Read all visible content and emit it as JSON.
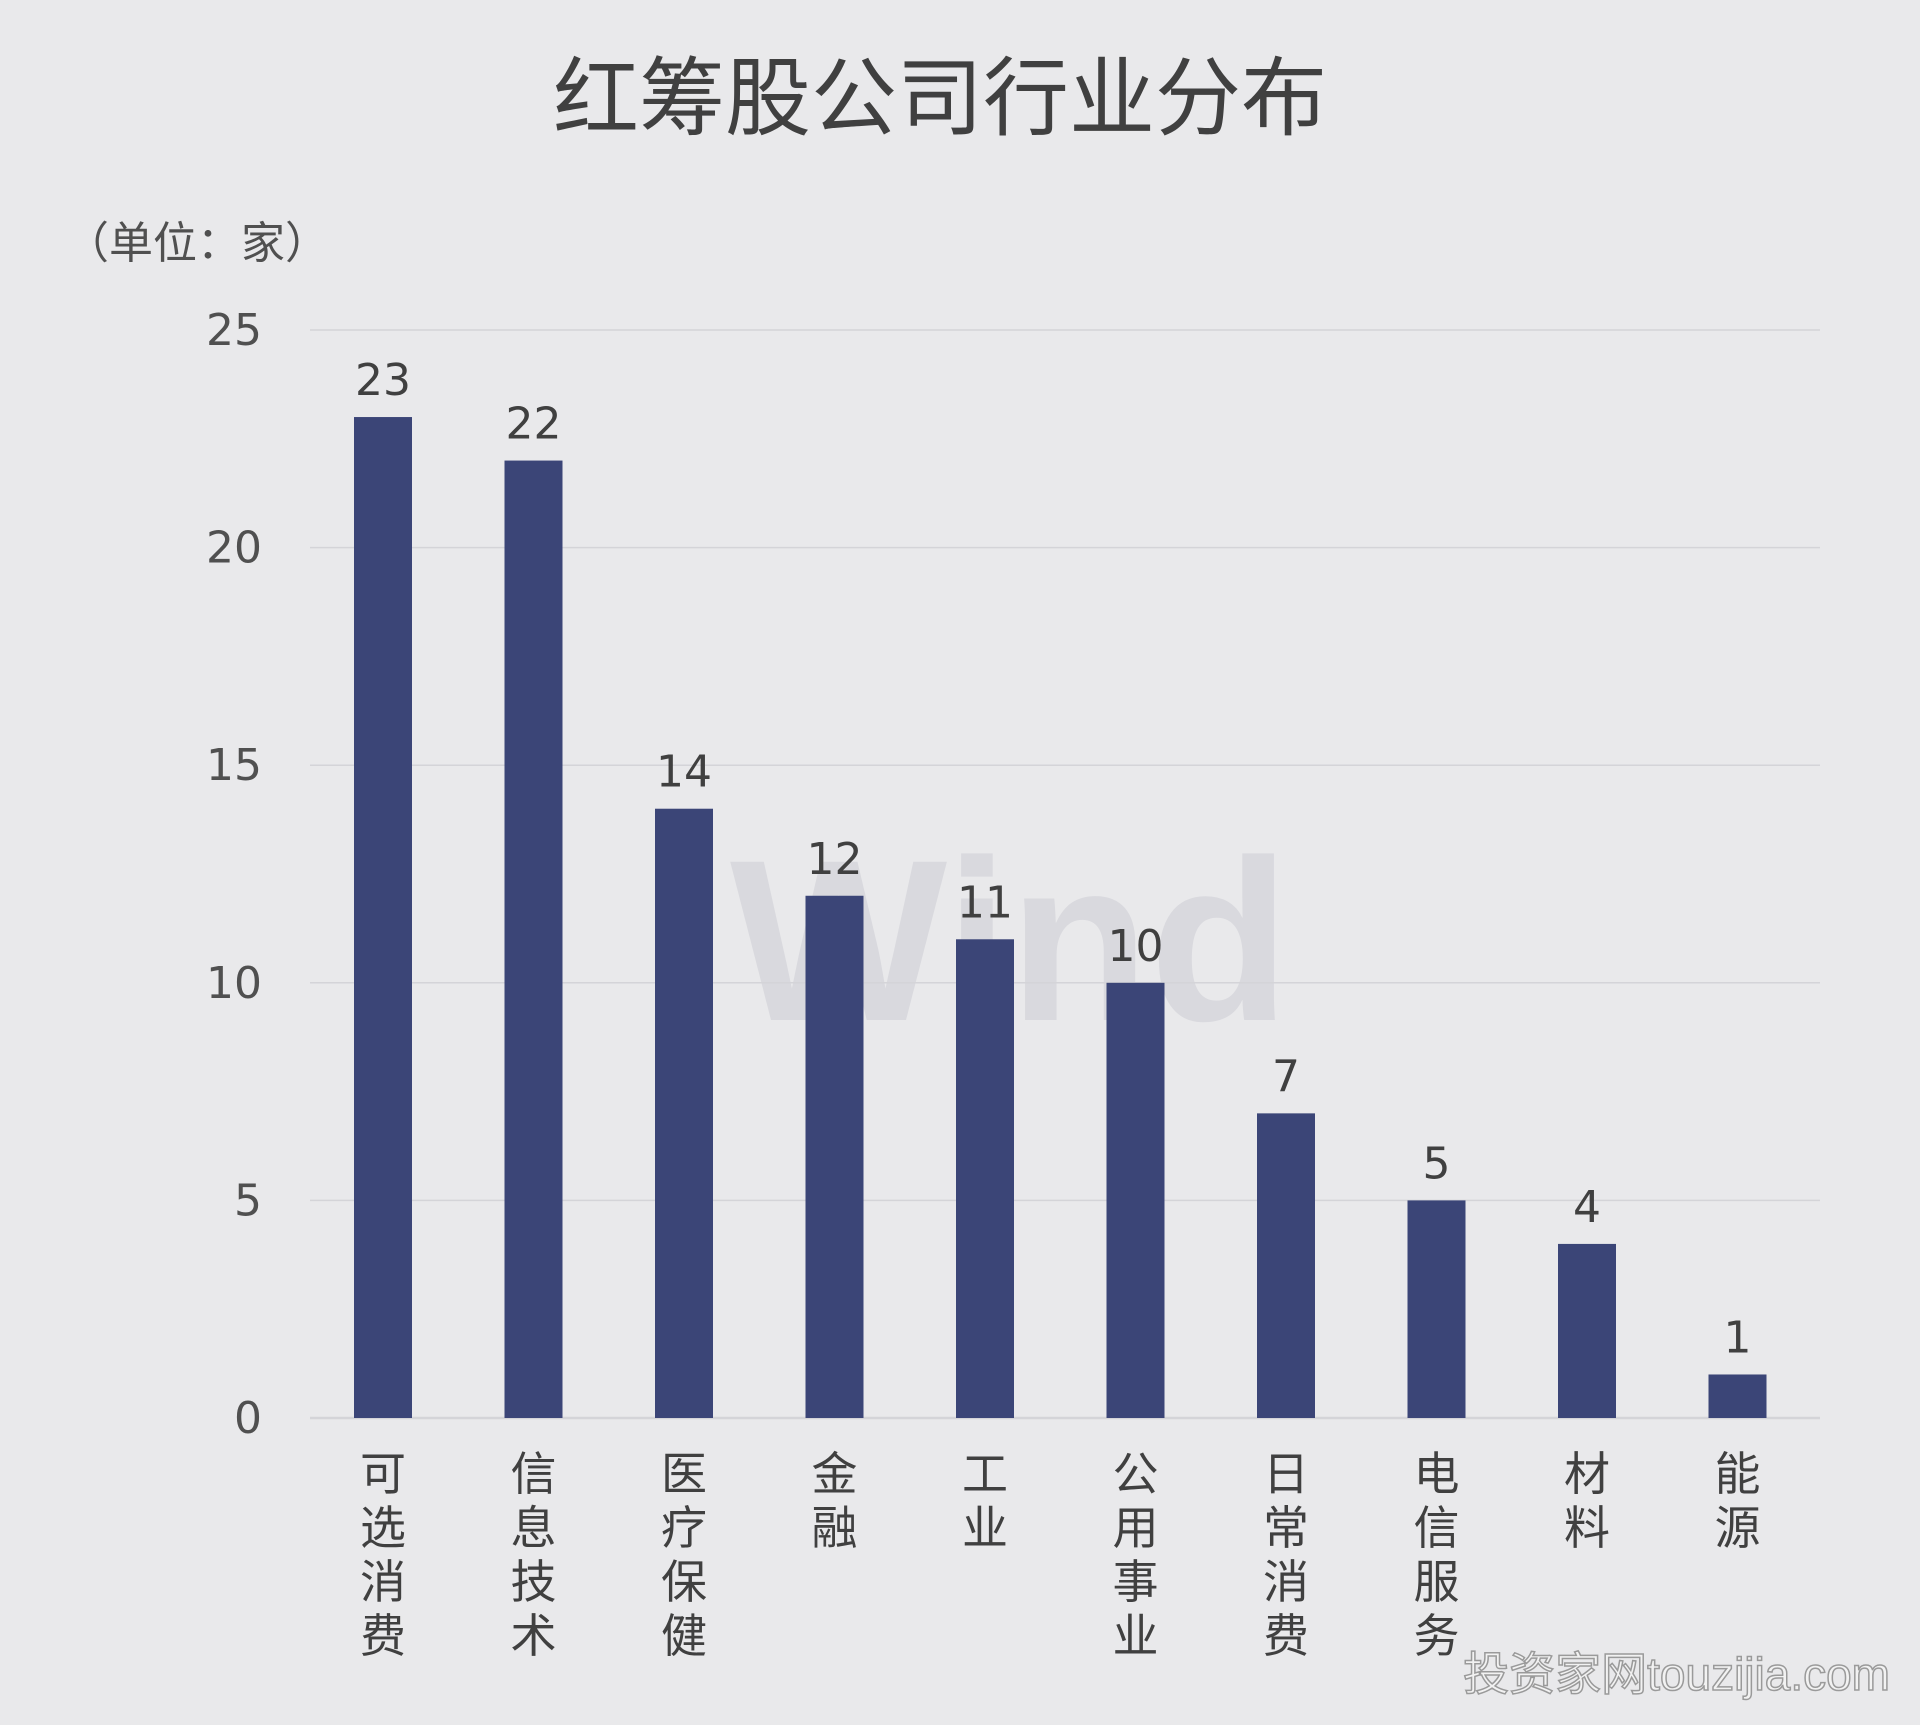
{
  "page": {
    "title": "红筹股公司行业分布",
    "unit_note": "（单位：家）",
    "watermark": "Wind",
    "credit": "投资家网touzijia.com"
  },
  "chart_data": {
    "type": "bar",
    "title": "红筹股公司行业分布",
    "ylabel": "（单位：家）",
    "categories": [
      "可选消费",
      "信息技术",
      "医疗保健",
      "金融",
      "工业",
      "公用事业",
      "日常消费",
      "电信服务",
      "材料",
      "能源"
    ],
    "values": [
      23,
      22,
      14,
      12,
      11,
      10,
      7,
      5,
      4,
      1
    ],
    "ylim": [
      0,
      25
    ],
    "yticks": [
      0,
      5,
      10,
      15,
      20,
      25
    ],
    "grid": true,
    "data_labels": true,
    "bar_color": "#3b4577",
    "grid_color": "#d4d4d8",
    "text_color": "#404040"
  }
}
